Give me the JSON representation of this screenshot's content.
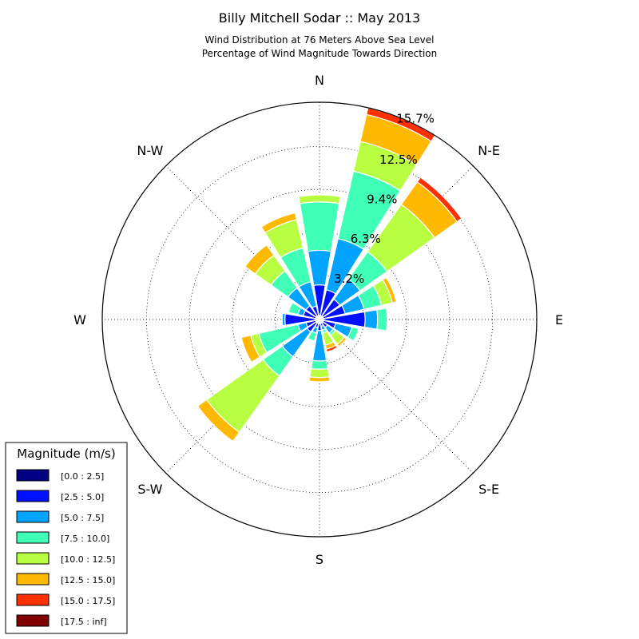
{
  "chart_data": {
    "type": "windrose",
    "title": "Billy Mitchell Sodar :: May 2013",
    "subtitle_line1": "Wind Distribution at 76 Meters Above Sea Level",
    "subtitle_line2": "Percentage of Wind Magnitude Towards Direction",
    "directions": [
      "N",
      "NNE",
      "NE",
      "ENE",
      "E",
      "ESE",
      "SE",
      "SSE",
      "S",
      "SSW",
      "SW",
      "WSW",
      "W",
      "WNW",
      "NW",
      "NNW"
    ],
    "compass_labels": [
      "N",
      "N-E",
      "E",
      "S-E",
      "S",
      "S-W",
      "W",
      "N-W"
    ],
    "rings": [
      "3.2%",
      "6.3%",
      "9.4%",
      "12.5%",
      "15.7%"
    ],
    "ring_values": [
      3.2,
      6.3,
      9.4,
      12.5,
      15.7
    ],
    "rmax": 15.7,
    "legend_title": "Magnitude (m/s)",
    "bins": [
      "[0.0 : 2.5]",
      "[2.5 : 5.0]",
      "[5.0 : 7.5]",
      "[7.5 : 10.0]",
      "[10.0 : 12.5]",
      "[12.5 : 15.0]",
      "[15.0 : 17.5]",
      "[17.5 : inf]"
    ],
    "colors": [
      "#000080",
      "#0010ff",
      "#00a4ff",
      "#40ffb7",
      "#b7ff40",
      "#ffb900",
      "#ff3000",
      "#800000"
    ],
    "cumulative": [
      [
        0.3,
        2.5,
        5.0,
        8.5,
        9.0,
        9.0,
        9.0,
        9.0
      ],
      [
        0.3,
        2.2,
        6.0,
        11.0,
        13.2,
        15.2,
        15.7,
        15.7
      ],
      [
        0.3,
        1.8,
        3.6,
        6.0,
        10.2,
        12.2,
        12.6,
        12.6
      ],
      [
        0.3,
        1.9,
        3.3,
        4.6,
        5.4,
        5.7,
        5.7,
        5.7
      ],
      [
        0.3,
        3.3,
        4.2,
        4.9,
        4.9,
        4.9,
        4.9,
        4.9
      ],
      [
        0.3,
        1.2,
        2.4,
        2.9,
        2.9,
        2.9,
        2.9,
        2.9
      ],
      [
        0.3,
        0.7,
        1.2,
        1.4,
        2.2,
        2.4,
        2.4,
        2.4
      ],
      [
        0.3,
        0.5,
        0.8,
        1.0,
        1.9,
        2.2,
        2.4,
        2.4
      ],
      [
        0.3,
        0.8,
        3.0,
        3.6,
        4.2,
        4.5,
        4.5,
        4.5
      ],
      [
        0.3,
        0.6,
        1.0,
        1.6,
        1.6,
        1.6,
        1.6,
        1.6
      ],
      [
        0.3,
        1.1,
        3.3,
        5.0,
        10.0,
        10.8,
        10.8,
        10.8
      ],
      [
        0.3,
        1.0,
        1.6,
        4.5,
        5.1,
        5.8,
        5.8,
        5.8
      ],
      [
        0.3,
        2.5,
        2.7,
        2.7,
        2.7,
        2.7,
        2.7,
        2.7
      ],
      [
        0.3,
        1.2,
        1.6,
        2.3,
        2.3,
        2.3,
        2.3,
        2.3
      ],
      [
        0.3,
        1.2,
        2.8,
        4.3,
        5.7,
        6.6,
        6.6,
        6.6
      ],
      [
        0.3,
        1.0,
        2.8,
        5.3,
        7.4,
        7.9,
        7.9,
        7.9
      ]
    ]
  }
}
